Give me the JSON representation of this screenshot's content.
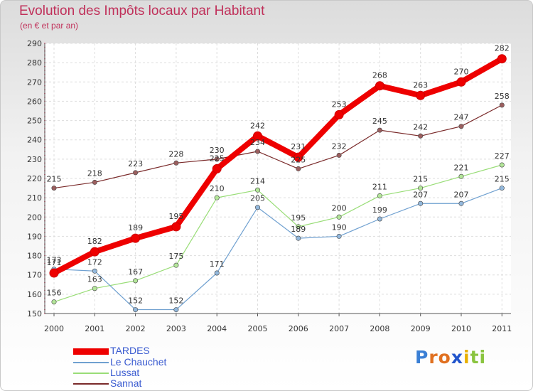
{
  "chart_data": {
    "type": "line",
    "title": "Evolution des Impôts locaux par Habitant",
    "subtitle": "(en € et par an)",
    "xlabel": "",
    "ylabel": "",
    "x": [
      "2000",
      "2001",
      "2002",
      "2003",
      "2004",
      "2005",
      "2006",
      "2007",
      "2008",
      "2009",
      "2010",
      "2011"
    ],
    "ylim": [
      150,
      290
    ],
    "yticks": [
      "150",
      "160",
      "170",
      "180",
      "190",
      "200",
      "210",
      "220",
      "230",
      "240",
      "250",
      "260",
      "270",
      "280",
      "290"
    ],
    "grid": true,
    "legend_position": "bottom-left",
    "series": [
      {
        "name": "TARDES",
        "color": "#ee0000",
        "values": [
          171,
          182,
          189,
          195,
          225,
          242,
          231,
          253,
          268,
          263,
          270,
          282
        ]
      },
      {
        "name": "Le Chauchet",
        "color": "#6fa0d0",
        "values": [
          173,
          172,
          152,
          152,
          171,
          205,
          189,
          190,
          199,
          207,
          207,
          215
        ]
      },
      {
        "name": "Lussat",
        "color": "#99dd77",
        "values": [
          156,
          163,
          167,
          175,
          210,
          214,
          195,
          200,
          211,
          215,
          221,
          227
        ]
      },
      {
        "name": "Sannat",
        "color": "#7a2a2a",
        "values": [
          215,
          218,
          223,
          228,
          230,
          234,
          225,
          232,
          245,
          242,
          247,
          258
        ]
      }
    ]
  },
  "logo": {
    "letters": [
      "P",
      "r",
      "o",
      "x",
      "i",
      "t",
      "i"
    ],
    "colors": [
      "#3a7fd5",
      "#e07020",
      "#e07020",
      "#2255cc",
      "#e8b000",
      "#8ac43f",
      "#8ac43f"
    ]
  }
}
